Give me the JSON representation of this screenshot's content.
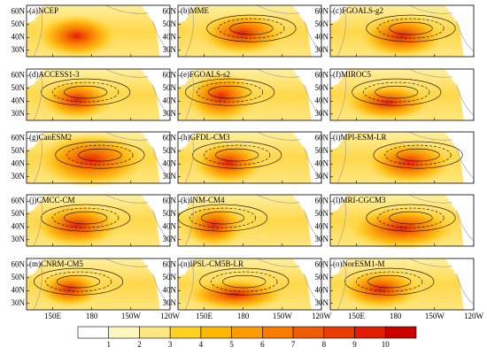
{
  "panels": [
    {
      "label": "(a)NCEP"
    },
    {
      "label": "(b)MME"
    },
    {
      "label": "(c)FGOALS-g2"
    },
    {
      "label": "(d)ACCESS1-3"
    },
    {
      "label": "(e)FGOALS-s2"
    },
    {
      "label": "(f)MIROC5"
    },
    {
      "label": "(g)CanESM2"
    },
    {
      "label": "(h)GFDL-CM3"
    },
    {
      "label": "(i)MPI-ESM-LR"
    },
    {
      "label": "(j)CMCC-CM"
    },
    {
      "label": "(k)INM-CM4"
    },
    {
      "label": "(l)MRI-CGCM3"
    },
    {
      "label": "(m)CNRM-CM5"
    },
    {
      "label": "(n)IPSL-CM5B-LR"
    },
    {
      "label": "(o)NorESM1-M"
    }
  ],
  "lat_labels": [
    "60N",
    "50N",
    "40N",
    "30N"
  ],
  "lon_labels": [
    "150E",
    "180",
    "150W",
    "120W"
  ],
  "colorbar": {
    "labels": [
      "1",
      "2",
      "3",
      "4",
      "5",
      "6",
      "7",
      "8",
      "9",
      "10"
    ],
    "colors": [
      "#ffffff",
      "#fff7c0",
      "#ffe680",
      "#ffd21f",
      "#ffb700",
      "#ff9a00",
      "#f77c00",
      "#f05c00",
      "#e83c00",
      "#e01e00",
      "#cc0000"
    ]
  }
}
